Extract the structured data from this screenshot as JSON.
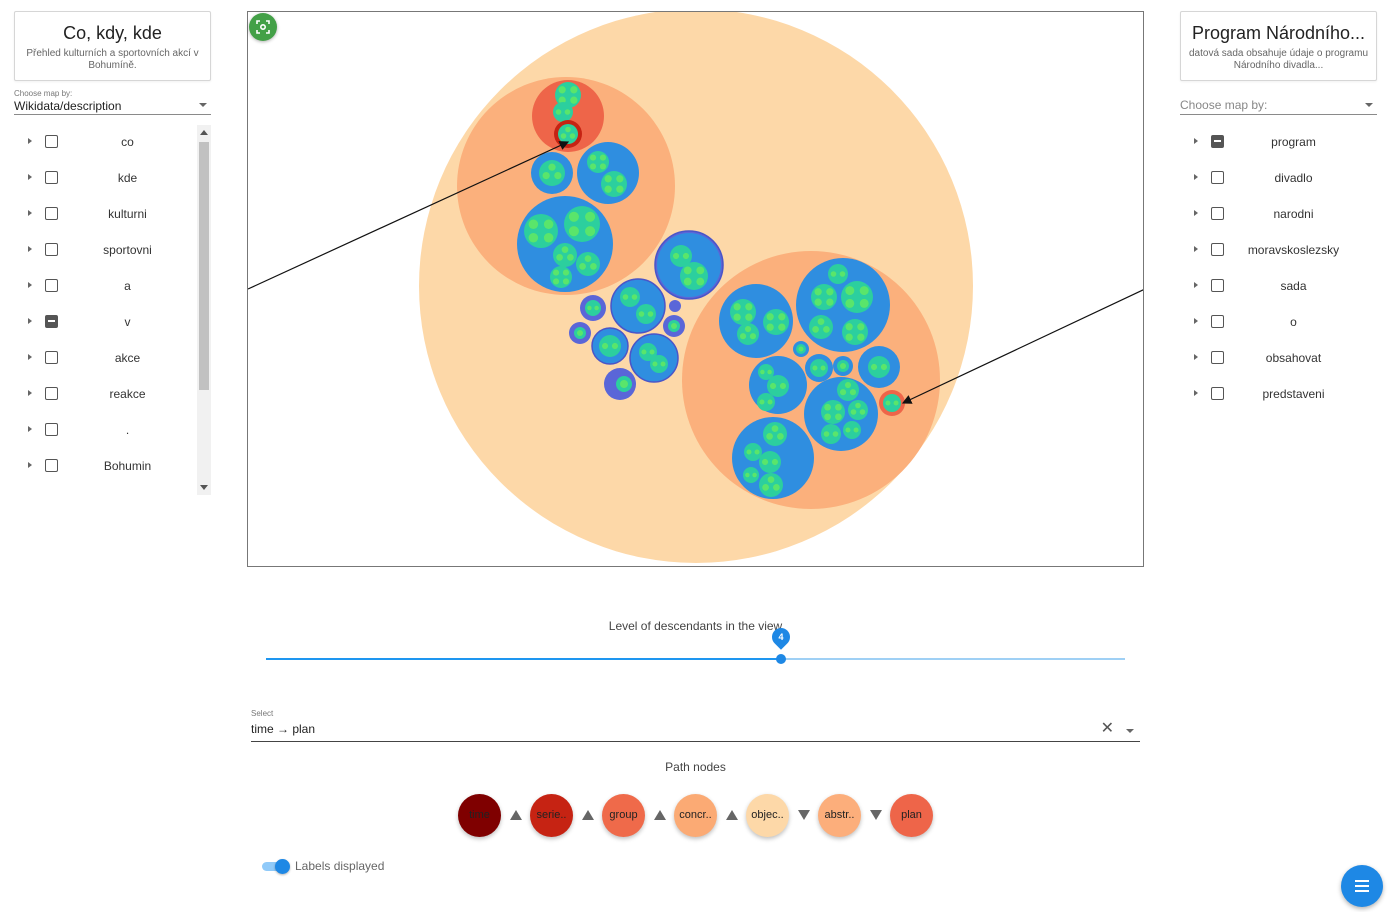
{
  "left_panel": {
    "title": "Co, kdy, kde",
    "description": "Přehled kulturních a sportovních akcí v Bohumíně.",
    "map_select_label": "Choose map by:",
    "map_select_value": "Wikidata/description",
    "items": [
      {
        "label": "co",
        "state": "unchecked"
      },
      {
        "label": "kde",
        "state": "unchecked"
      },
      {
        "label": "kulturni",
        "state": "unchecked"
      },
      {
        "label": "sportovni",
        "state": "unchecked"
      },
      {
        "label": "a",
        "state": "unchecked"
      },
      {
        "label": "v",
        "state": "indeterminate"
      },
      {
        "label": "akce",
        "state": "unchecked"
      },
      {
        "label": "reakce",
        "state": "unchecked"
      },
      {
        "label": ".",
        "state": "unchecked"
      },
      {
        "label": "Bohumin",
        "state": "unchecked"
      }
    ]
  },
  "right_panel": {
    "title": "Program Národního...",
    "description": "datová sada obsahuje údaje o programu Národního divadla...",
    "map_select_placeholder": "Choose map by:",
    "items": [
      {
        "label": "program",
        "state": "indeterminate"
      },
      {
        "label": "divadlo",
        "state": "unchecked"
      },
      {
        "label": "narodni",
        "state": "unchecked"
      },
      {
        "label": "moravskoslezsky",
        "state": "unchecked"
      },
      {
        "label": "sada",
        "state": "unchecked"
      },
      {
        "label": "o",
        "state": "unchecked"
      },
      {
        "label": "obsahovat",
        "state": "unchecked"
      },
      {
        "label": "predstaveni",
        "state": "unchecked"
      }
    ]
  },
  "view": {
    "focus_icon": "center-focus-icon"
  },
  "slider": {
    "label": "Level of descendants in the view",
    "value": 4,
    "value_text": "4",
    "fraction": 0.6
  },
  "path_select": {
    "label": "Select",
    "value": "time → plan"
  },
  "path_nodes": {
    "title": "Path nodes",
    "nodes": [
      {
        "label": "time",
        "color": "#7f0000",
        "dir": "up"
      },
      {
        "label": "serie..",
        "color": "#c62313",
        "dir": "up"
      },
      {
        "label": "group",
        "color": "#ef6a4a",
        "dir": "up"
      },
      {
        "label": "concr..",
        "color": "#fbaa74",
        "dir": "up"
      },
      {
        "label": "objec..",
        "color": "#fdd8a8",
        "dir": "down"
      },
      {
        "label": "abstr..",
        "color": "#fcae7b",
        "dir": "down"
      },
      {
        "label": "plan",
        "color": "#ee6549",
        "dir": null
      }
    ]
  },
  "labels_toggle": {
    "label": "Labels displayed",
    "on": true
  },
  "colors": {
    "outer_circle": "#fdd8a8",
    "group_circle": "#fbb07c",
    "cluster_blue": "#2f8ee0",
    "cluster_purple": "#5a66d8",
    "leaf_teal": "#2ccf9e",
    "leaf_green": "#5ae56b",
    "path_red": "#ee6549",
    "path_dark": "#c62313",
    "accent": "#1e88e5",
    "focus_green": "#43a047"
  }
}
